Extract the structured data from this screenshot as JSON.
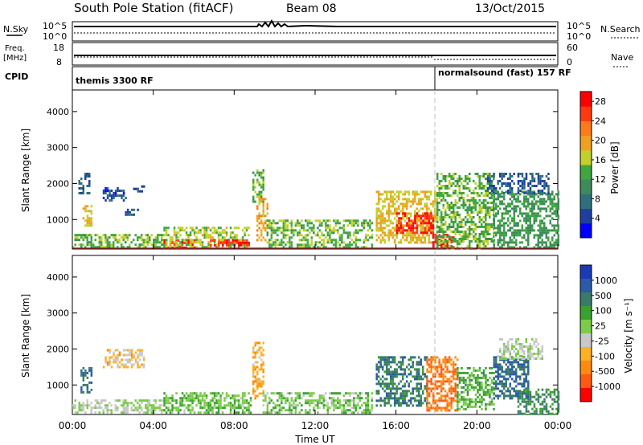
{
  "header": {
    "title": "South Pole Station (fitACF)",
    "beam": "Beam 08",
    "date": "13/Oct/2015"
  },
  "top_panels": {
    "nsky_label": "N.Sky",
    "nsky_ticks": [
      "10^5",
      "10^0"
    ],
    "nsearch_label": "N.Search",
    "nsearch_ticks": [
      "10^5",
      "10^0"
    ],
    "freq_label": "Freq.",
    "freq_unit": "[MHz]",
    "freq_ticks": [
      "18",
      "8"
    ],
    "nave_label": "Nave",
    "nave_ticks": [
      "60",
      "0"
    ],
    "cpid_label": "CPID"
  },
  "cpid_segments": [
    {
      "start_hour": 0,
      "label": "themis 3300 RF"
    },
    {
      "start_hour": 18,
      "label": "normalsound (fast) 157 RF"
    }
  ],
  "colors": {
    "power_scale": [
      "#0000ff",
      "#1e3f9e",
      "#2e6f7e",
      "#3d8a5a",
      "#3fa640",
      "#c3d02a",
      "#f0a020",
      "#ff7a1a",
      "#ff3a10",
      "#ff0000"
    ],
    "velocity_scale": [
      "#1a3ab8",
      "#2a5aa8",
      "#3a7a6a",
      "#3aa030",
      "#7acc4a",
      "#c8c8c8",
      "#ffb020",
      "#ff8a10",
      "#ff5a10",
      "#ff0000"
    ]
  },
  "chart_data": [
    {
      "type": "heatmap",
      "panel": "power",
      "ylabel": "Slant Range [km]",
      "xlabel": "",
      "x_ticks": [
        "00:00",
        "04:00",
        "08:00",
        "12:00",
        "16:00",
        "20:00",
        "00:00"
      ],
      "y_ticks": [
        "1000",
        "2000",
        "3000",
        "4000"
      ],
      "xlim": [
        0,
        24
      ],
      "ylim": [
        180,
        4600
      ],
      "colorbar_label": "Power [dB]",
      "colorbar_ticks": [
        "4",
        "8",
        "12",
        "16",
        "20",
        "24",
        "28"
      ],
      "colorbar_range": [
        0,
        30
      ],
      "series": [
        {
          "x": [
            0.5,
            0.9
          ],
          "y": [
            800,
            1400
          ],
          "value": 18
        },
        {
          "x": [
            0.3,
            0.8
          ],
          "y": [
            1700,
            2300
          ],
          "value": 6
        },
        {
          "x": [
            1.5,
            2.6
          ],
          "y": [
            1550,
            1900
          ],
          "value": 5
        },
        {
          "x": [
            2.6,
            3.2
          ],
          "y": [
            1100,
            1300
          ],
          "value": 6
        },
        {
          "x": [
            3.0,
            3.6
          ],
          "y": [
            1750,
            1950
          ],
          "value": 6
        },
        {
          "x": [
            0.0,
            4.5
          ],
          "y": [
            200,
            600
          ],
          "value": 14
        },
        {
          "x": [
            4.5,
            6.0
          ],
          "y": [
            200,
            450
          ],
          "value": 28
        },
        {
          "x": [
            4.5,
            8.7
          ],
          "y": [
            200,
            800
          ],
          "value": 16
        },
        {
          "x": [
            6.8,
            8.7
          ],
          "y": [
            300,
            450
          ],
          "value": 26
        },
        {
          "x": [
            8.9,
            9.4
          ],
          "y": [
            1500,
            2400
          ],
          "value": 14
        },
        {
          "x": [
            9.1,
            9.6
          ],
          "y": [
            400,
            1600
          ],
          "value": 20
        },
        {
          "x": [
            9.6,
            14.8
          ],
          "y": [
            200,
            1000
          ],
          "value": 14
        },
        {
          "x": [
            15.0,
            18.0
          ],
          "y": [
            350,
            1800
          ],
          "value": 18
        },
        {
          "x": [
            16.0,
            17.8
          ],
          "y": [
            600,
            1200
          ],
          "value": 28
        },
        {
          "x": [
            17.8,
            18.8
          ],
          "y": [
            250,
            600
          ],
          "value": 28
        },
        {
          "x": [
            18.0,
            20.8
          ],
          "y": [
            200,
            2300
          ],
          "value": 14
        },
        {
          "x": [
            20.5,
            21.8
          ],
          "y": [
            1750,
            2300
          ],
          "value": 6
        },
        {
          "x": [
            20.8,
            24.0
          ],
          "y": [
            200,
            1800
          ],
          "value": 12
        },
        {
          "x": [
            22.0,
            23.5
          ],
          "y": [
            1750,
            2300
          ],
          "value": 6
        }
      ]
    },
    {
      "type": "heatmap",
      "panel": "velocity",
      "ylabel": "Slant Range [km]",
      "xlabel": "Time UT",
      "x_ticks": [
        "00:00",
        "04:00",
        "08:00",
        "12:00",
        "16:00",
        "20:00",
        "00:00"
      ],
      "y_ticks": [
        "1000",
        "2000",
        "3000",
        "4000"
      ],
      "xlim": [
        0,
        24
      ],
      "ylim": [
        180,
        4600
      ],
      "colorbar_label": "Velocity [m s⁻¹]",
      "colorbar_ticks": [
        "1000",
        "500",
        "100",
        "25",
        "-25",
        "-100",
        "-500",
        "-1000"
      ],
      "colorbar_range": [
        -1200,
        1200
      ],
      "series": [
        {
          "x": [
            0.4,
            0.9
          ],
          "y": [
            800,
            1500
          ],
          "value": 700
        },
        {
          "x": [
            1.5,
            3.5
          ],
          "y": [
            1500,
            2000
          ],
          "value": -300
        },
        {
          "x": [
            0.0,
            4.5
          ],
          "y": [
            200,
            600
          ],
          "value": 0
        },
        {
          "x": [
            4.5,
            8.8
          ],
          "y": [
            200,
            800
          ],
          "value": 200
        },
        {
          "x": [
            8.9,
            9.4
          ],
          "y": [
            600,
            2200
          ],
          "value": -400
        },
        {
          "x": [
            9.4,
            14.8
          ],
          "y": [
            200,
            800
          ],
          "value": 150
        },
        {
          "x": [
            15.0,
            17.5
          ],
          "y": [
            400,
            1800
          ],
          "value": 600
        },
        {
          "x": [
            17.5,
            19.0
          ],
          "y": [
            300,
            1800
          ],
          "value": -700
        },
        {
          "x": [
            19.0,
            20.8
          ],
          "y": [
            300,
            1500
          ],
          "value": 300
        },
        {
          "x": [
            20.8,
            22.5
          ],
          "y": [
            600,
            1800
          ],
          "value": 700
        },
        {
          "x": [
            21.0,
            23.2
          ],
          "y": [
            1700,
            2300
          ],
          "value": 0
        },
        {
          "x": [
            22.0,
            24.0
          ],
          "y": [
            200,
            900
          ],
          "value": 500
        }
      ]
    }
  ]
}
